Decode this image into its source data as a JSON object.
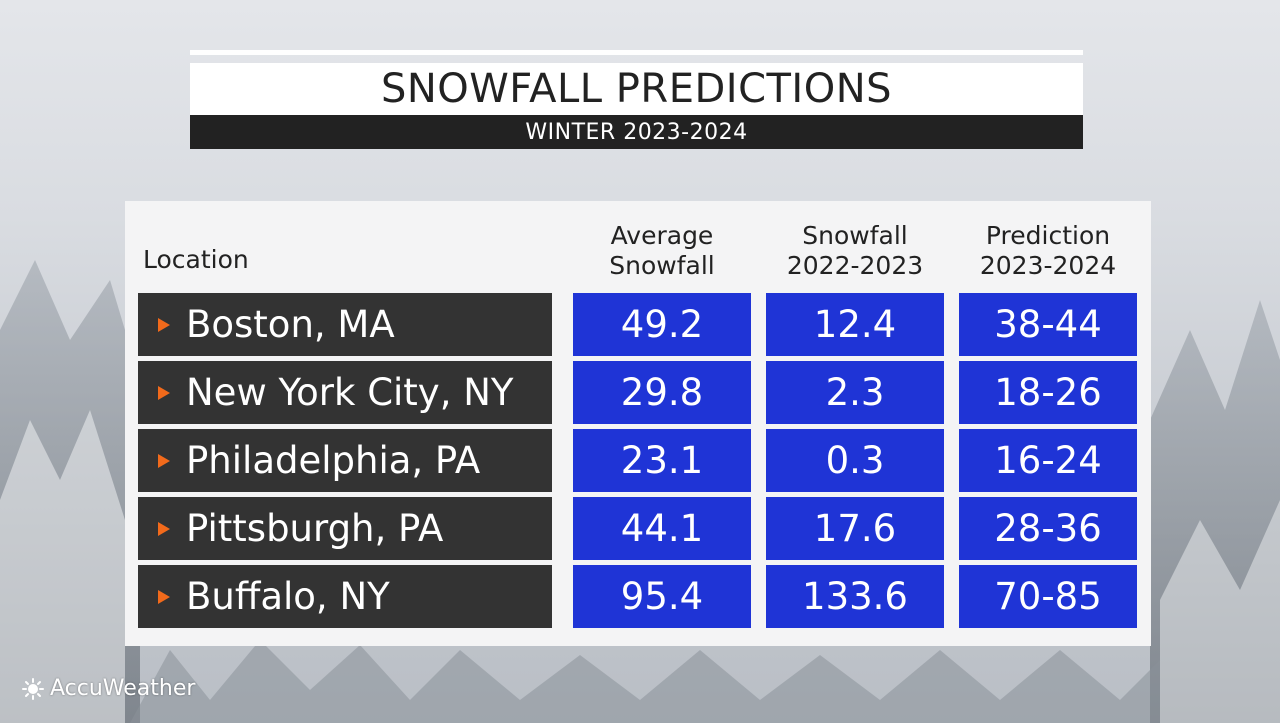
{
  "title": "SNOWFALL PREDICTIONS",
  "subtitle": "WINTER 2023-2024",
  "brand": "AccuWeather",
  "colors": {
    "cell_blue": "#1f34d6",
    "location_dark": "#333333",
    "arrow_orange": "#f26a1b"
  },
  "chart_data": {
    "type": "table",
    "columns": [
      "Location",
      "Average\nSnowfall",
      "Snowfall\n2022-2023",
      "Prediction\n2023-2024"
    ],
    "rows": [
      {
        "location": "Boston, MA",
        "average": "49.2",
        "last": "12.4",
        "prediction": "38-44"
      },
      {
        "location": "New York City, NY",
        "average": "29.8",
        "last": "2.3",
        "prediction": "18-26"
      },
      {
        "location": "Philadelphia, PA",
        "average": "23.1",
        "last": "0.3",
        "prediction": "16-24"
      },
      {
        "location": "Pittsburgh, PA",
        "average": "44.1",
        "last": "17.6",
        "prediction": "28-36"
      },
      {
        "location": "Buffalo, NY",
        "average": "95.4",
        "last": "133.6",
        "prediction": "70-85"
      }
    ]
  }
}
